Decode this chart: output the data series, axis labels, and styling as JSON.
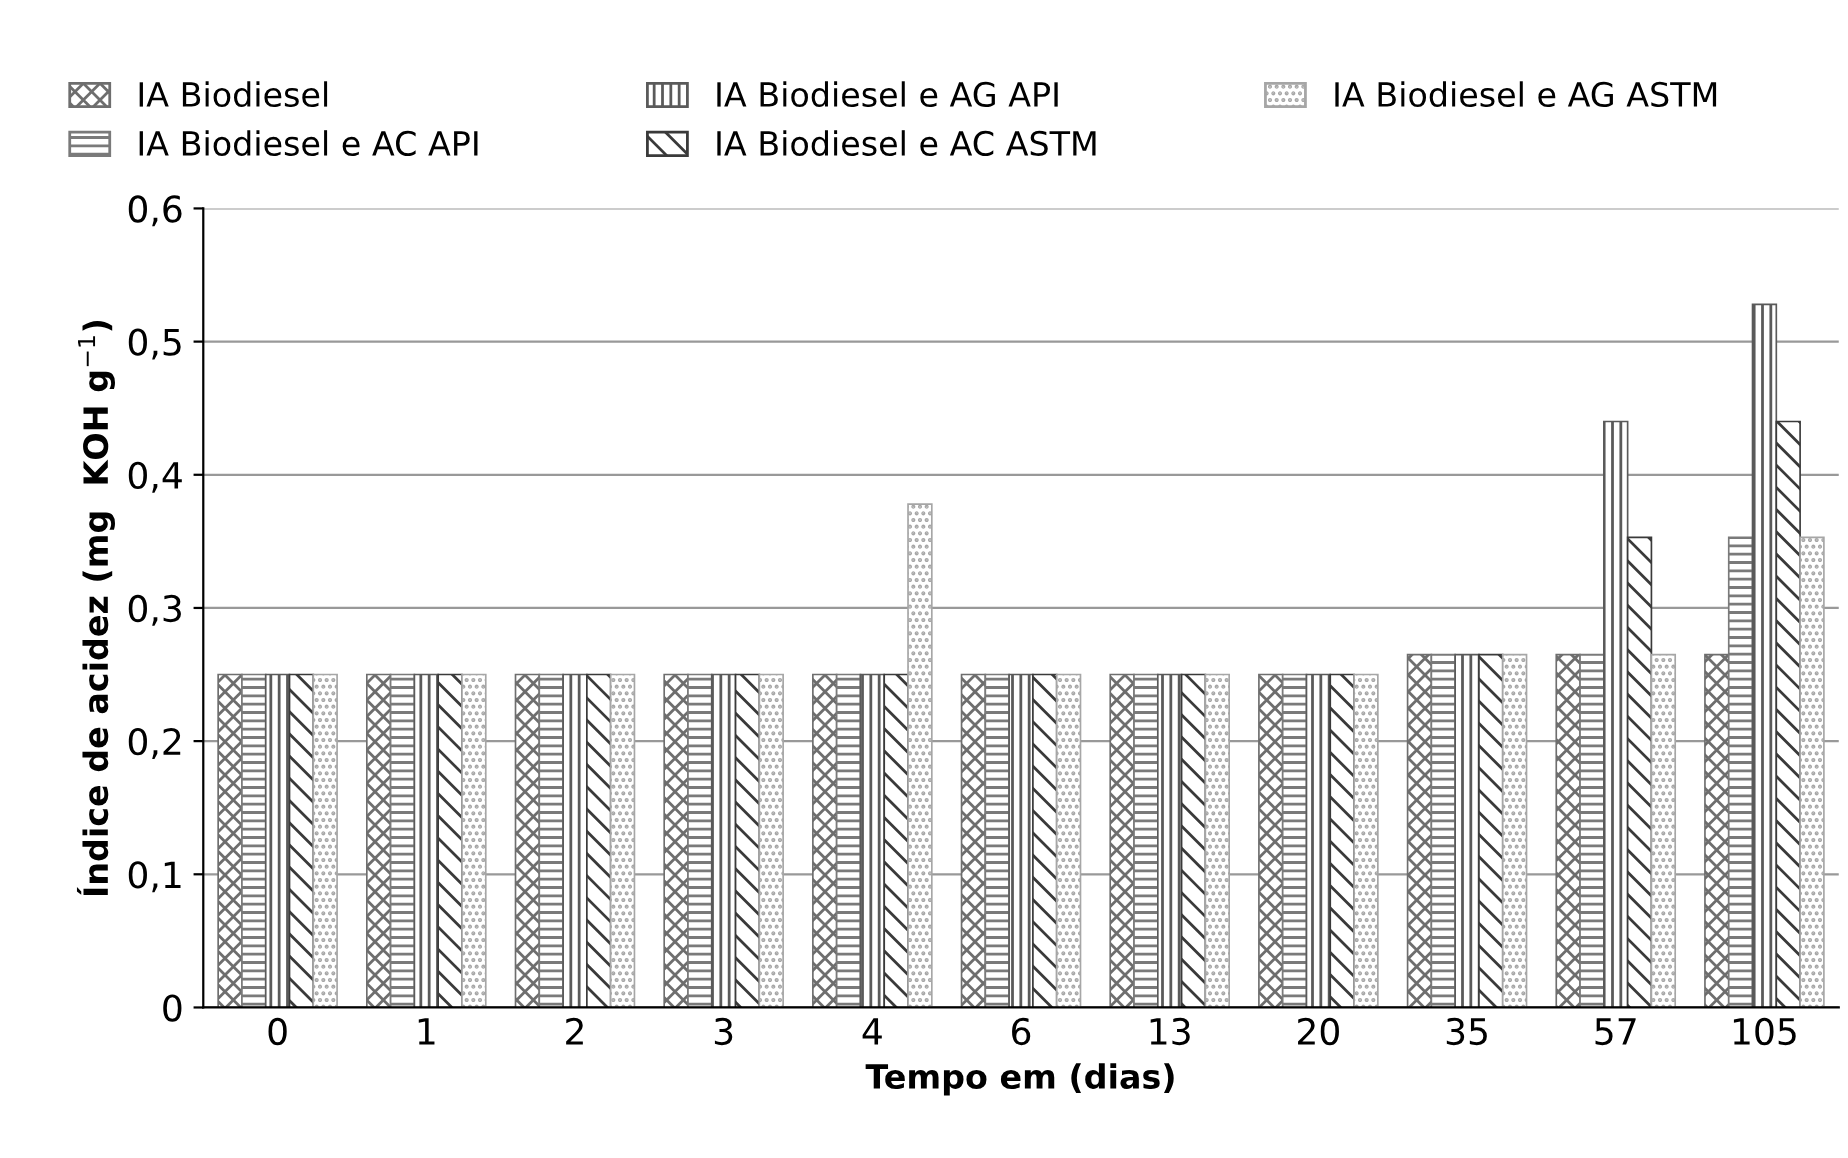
{
  "chart_data": {
    "type": "bar",
    "xlabel": "Tempo em (dias)",
    "ylabel": "Índice de acidez (mg  KOH g$^{−1}$)",
    "categories": [
      "0",
      "1",
      "2",
      "3",
      "4",
      "6",
      "13",
      "20",
      "35",
      "57",
      "105"
    ],
    "series": [
      {
        "name": "IA Biodiesel",
        "color": "#6e6e6e",
        "values": [
          0.25,
          0.25,
          0.25,
          0.25,
          0.25,
          0.25,
          0.25,
          0.25,
          0.265,
          0.265,
          0.265
        ]
      },
      {
        "name": "IA Biodiesel e AC API",
        "color": "#7a7a7a",
        "values": [
          0.25,
          0.25,
          0.25,
          0.25,
          0.25,
          0.25,
          0.25,
          0.25,
          0.265,
          0.265,
          0.353
        ]
      },
      {
        "name": "IA Biodiesel e AG API",
        "color": "#5a5a5a",
        "values": [
          0.25,
          0.25,
          0.25,
          0.25,
          0.25,
          0.25,
          0.25,
          0.25,
          0.265,
          0.44,
          0.528
        ]
      },
      {
        "name": "IA Biodiesel e AC ASTM",
        "color": "#3a3a3a",
        "values": [
          0.25,
          0.25,
          0.25,
          0.25,
          0.25,
          0.25,
          0.25,
          0.25,
          0.265,
          0.353,
          0.44
        ]
      },
      {
        "name": "IA Biodiesel e AG ASTM",
        "color": "#a6a6a6",
        "values": [
          0.25,
          0.25,
          0.25,
          0.25,
          0.378,
          0.25,
          0.25,
          0.25,
          0.265,
          0.265,
          0.353
        ]
      }
    ],
    "ylim": [
      0,
      0.6
    ],
    "yticks": [
      0,
      {
        "value": 0.1,
        "label": "0,1"
      },
      {
        "value": 0.2,
        "label": "0,2"
      },
      {
        "value": 0.3,
        "label": "0,3"
      },
      {
        "value": 0.4,
        "label": "0,4"
      },
      {
        "value": 0.5,
        "label": "0,5"
      },
      {
        "value": 0.6,
        "label": "0,6"
      }
    ],
    "grid": "y",
    "legend": "top"
  }
}
